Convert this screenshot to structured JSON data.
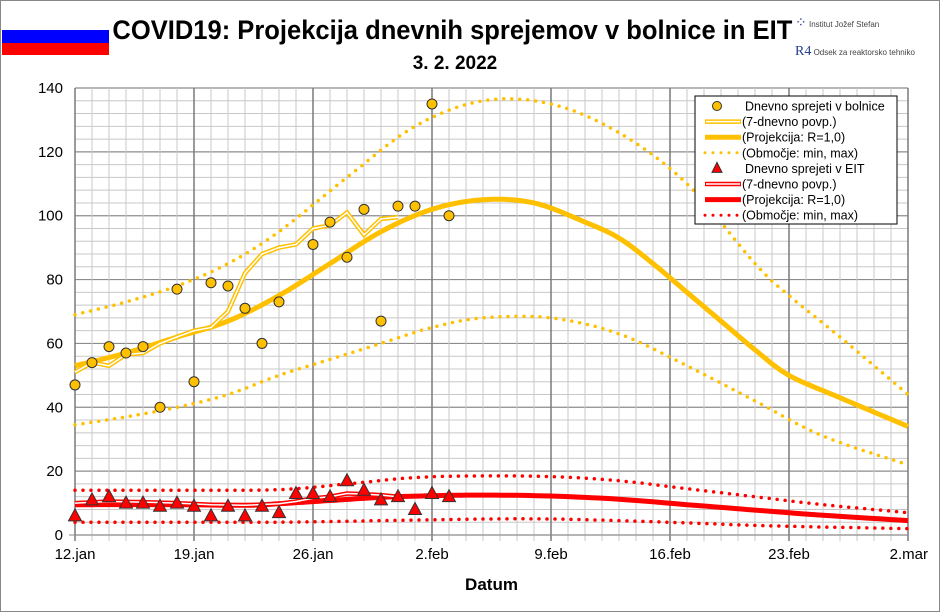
{
  "header": {
    "title": "COVID19: Projekcija dnevnih sprejemov v bolnice in EIT",
    "subtitle": "3. 2. 2022",
    "logo_ijs": "Institut Jožef Stefan",
    "logo_r4": "Odsek za reaktorsko tehniko",
    "flag_colors": [
      "#ffffff",
      "#0000ff",
      "#ff0000"
    ]
  },
  "chart_data": {
    "type": "line",
    "xlabel": "Datum",
    "ylabel": "",
    "ylim": [
      0,
      140
    ],
    "yticks": [
      0,
      20,
      40,
      60,
      80,
      100,
      120,
      140
    ],
    "x_start": "12.jan",
    "x_range_days": [
      0,
      49
    ],
    "xticks": [
      {
        "label": "12.jan",
        "day": 0
      },
      {
        "label": "19.jan",
        "day": 7
      },
      {
        "label": "26.jan",
        "day": 14
      },
      {
        "label": "2.feb",
        "day": 21
      },
      {
        "label": "9.feb",
        "day": 28
      },
      {
        "label": "16.feb",
        "day": 35
      },
      {
        "label": "23.feb",
        "day": 42
      },
      {
        "label": "2.mar",
        "day": 49
      }
    ],
    "grid": true,
    "legend_position": "top-right",
    "series": [
      {
        "name": "Dnevno sprejeti v bolnice",
        "style": "points-circle",
        "color": "#ffc000",
        "points": [
          [
            0,
            47
          ],
          [
            1,
            54
          ],
          [
            2,
            59
          ],
          [
            3,
            57
          ],
          [
            4,
            59
          ],
          [
            5,
            40
          ],
          [
            6,
            77
          ],
          [
            7,
            48
          ],
          [
            8,
            79
          ],
          [
            9,
            78
          ],
          [
            10,
            71
          ],
          [
            11,
            60
          ],
          [
            12,
            73
          ],
          [
            14,
            91
          ],
          [
            15,
            98
          ],
          [
            16,
            87
          ],
          [
            17,
            102
          ],
          [
            18,
            67
          ],
          [
            19,
            103
          ],
          [
            20,
            103
          ],
          [
            21,
            135
          ],
          [
            22,
            100
          ]
        ]
      },
      {
        "name": "(7-dnevno povp.)",
        "style": "double-line",
        "color": "#ffc000",
        "points": [
          [
            0,
            51
          ],
          [
            1,
            54
          ],
          [
            2,
            53
          ],
          [
            3,
            56.5
          ],
          [
            4,
            57
          ],
          [
            5,
            60
          ],
          [
            6,
            62
          ],
          [
            7,
            64
          ],
          [
            8,
            65
          ],
          [
            9,
            70
          ],
          [
            10,
            82
          ],
          [
            11,
            88
          ],
          [
            12,
            90
          ],
          [
            13,
            91
          ],
          [
            14,
            96
          ],
          [
            15,
            97
          ],
          [
            16,
            101
          ],
          [
            17,
            94
          ],
          [
            18,
            99
          ],
          [
            19,
            99.5
          ]
        ]
      },
      {
        "name": "(Projekcija: R=1,0)",
        "style": "thick-line",
        "color": "#ffc000",
        "points": [
          [
            0,
            53
          ],
          [
            3,
            57
          ],
          [
            6,
            62
          ],
          [
            9,
            67
          ],
          [
            12,
            75
          ],
          [
            15,
            85
          ],
          [
            18,
            95
          ],
          [
            21,
            102
          ],
          [
            24,
            105
          ],
          [
            27,
            104
          ],
          [
            30,
            98
          ],
          [
            32,
            93
          ],
          [
            34,
            85
          ],
          [
            36,
            76
          ],
          [
            38,
            67
          ],
          [
            40,
            58
          ],
          [
            42,
            50
          ],
          [
            45,
            43
          ],
          [
            49,
            34
          ]
        ]
      },
      {
        "name": "(Območje: min, max)",
        "style": "dotted",
        "color": "#ffc000",
        "points": [
          [
            0,
            69
          ],
          [
            3,
            73
          ],
          [
            6,
            78
          ],
          [
            9,
            85
          ],
          [
            12,
            95
          ],
          [
            16,
            112
          ],
          [
            20,
            128
          ],
          [
            24,
            136
          ],
          [
            28,
            135
          ],
          [
            32,
            126
          ],
          [
            36,
            110
          ],
          [
            40,
            85
          ],
          [
            42,
            75
          ],
          [
            45,
            62
          ],
          [
            49,
            44
          ]
        ],
        "points_min": [
          [
            0,
            34.5
          ],
          [
            3,
            37
          ],
          [
            6,
            40
          ],
          [
            9,
            44
          ],
          [
            12,
            50
          ],
          [
            15,
            55
          ],
          [
            18,
            60
          ],
          [
            21,
            65
          ],
          [
            24,
            68
          ],
          [
            28,
            68
          ],
          [
            32,
            63
          ],
          [
            36,
            53
          ],
          [
            40,
            42
          ],
          [
            44,
            31
          ],
          [
            49,
            22
          ]
        ]
      },
      {
        "name": "Dnevno sprejeti v EIT",
        "style": "points-triangle",
        "color": "#ff0000",
        "points": [
          [
            0,
            6
          ],
          [
            1,
            11
          ],
          [
            2,
            12
          ],
          [
            3,
            10
          ],
          [
            4,
            10
          ],
          [
            5,
            9
          ],
          [
            6,
            10
          ],
          [
            7,
            9
          ],
          [
            8,
            6
          ],
          [
            9,
            9
          ],
          [
            10,
            6
          ],
          [
            11,
            9
          ],
          [
            12,
            7
          ],
          [
            13,
            13
          ],
          [
            14,
            13
          ],
          [
            15,
            12
          ],
          [
            16,
            17
          ],
          [
            17,
            14
          ],
          [
            18,
            11
          ],
          [
            19,
            12
          ],
          [
            20,
            8
          ],
          [
            21,
            13
          ],
          [
            22,
            12
          ]
        ]
      },
      {
        "name": "(7-dnevno povp.)",
        "style": "double-line",
        "color": "#ff0000",
        "points": [
          [
            0,
            10
          ],
          [
            2,
            10.5
          ],
          [
            4,
            10.3
          ],
          [
            6,
            10
          ],
          [
            8,
            9.5
          ],
          [
            10,
            9.3
          ],
          [
            12,
            9.8
          ],
          [
            13,
            10.5
          ],
          [
            14,
            11.5
          ],
          [
            15,
            12
          ],
          [
            16,
            13
          ],
          [
            17,
            12.8
          ],
          [
            18,
            12.5
          ],
          [
            19,
            12
          ]
        ]
      },
      {
        "name": "(Projekcija: R=1,0)",
        "style": "thick-line",
        "color": "#ff0000",
        "points": [
          [
            0,
            9.5
          ],
          [
            6,
            9.5
          ],
          [
            10,
            9.3
          ],
          [
            12,
            9.8
          ],
          [
            15,
            10.8
          ],
          [
            18,
            11.8
          ],
          [
            21,
            12.3
          ],
          [
            24,
            12.5
          ],
          [
            28,
            12.2
          ],
          [
            32,
            11.2
          ],
          [
            36,
            9.5
          ],
          [
            40,
            7.8
          ],
          [
            44,
            6.2
          ],
          [
            49,
            4.5
          ]
        ]
      },
      {
        "name": "(Območje: min, max)",
        "style": "dotted",
        "color": "#ff0000",
        "points": [
          [
            0,
            14
          ],
          [
            6,
            14
          ],
          [
            12,
            14.2
          ],
          [
            16,
            16
          ],
          [
            20,
            18
          ],
          [
            24,
            18.5
          ],
          [
            28,
            18.3
          ],
          [
            32,
            17
          ],
          [
            36,
            14.5
          ],
          [
            40,
            12
          ],
          [
            44,
            9.5
          ],
          [
            49,
            7
          ]
        ],
        "points_min": [
          [
            0,
            4
          ],
          [
            6,
            4
          ],
          [
            12,
            4
          ],
          [
            18,
            4.5
          ],
          [
            24,
            5
          ],
          [
            28,
            5
          ],
          [
            32,
            4.5
          ],
          [
            36,
            3.8
          ],
          [
            40,
            3
          ],
          [
            44,
            2.5
          ],
          [
            49,
            2
          ]
        ]
      }
    ]
  }
}
